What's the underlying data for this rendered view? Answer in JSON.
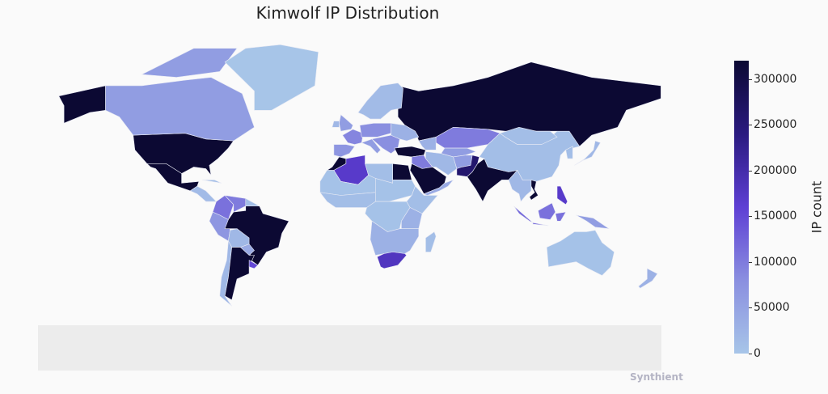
{
  "chart_data": {
    "type": "choropleth",
    "title": "Kimwolf IP Distribution",
    "colorbar": {
      "label": "IP count",
      "range": [
        0,
        320000
      ],
      "ticks": [
        "0",
        "50000",
        "100000",
        "150000",
        "200000",
        "250000",
        "300000"
      ],
      "colors": [
        "#a7c5e8",
        "#8a8fe0",
        "#5e3fd4",
        "#2a1a80",
        "#0c0933"
      ]
    },
    "regions": [
      {
        "name": "United States",
        "value": 320000
      },
      {
        "name": "Alaska",
        "value": 320000
      },
      {
        "name": "Canada",
        "value": 60000
      },
      {
        "name": "Canadian Arctic",
        "value": 60000
      },
      {
        "name": "Greenland",
        "value": 0
      },
      {
        "name": "Mexico",
        "value": 320000
      },
      {
        "name": "Central America",
        "value": 15000
      },
      {
        "name": "Cuba",
        "value": 10000
      },
      {
        "name": "Colombia",
        "value": 110000
      },
      {
        "name": "Venezuela",
        "value": 100000
      },
      {
        "name": "Guianas",
        "value": 10000
      },
      {
        "name": "Peru/Ecuador",
        "value": 70000
      },
      {
        "name": "Brazil",
        "value": 320000
      },
      {
        "name": "Bolivia",
        "value": 20000
      },
      {
        "name": "Paraguay",
        "value": 40000
      },
      {
        "name": "Chile",
        "value": 20000
      },
      {
        "name": "Argentina",
        "value": 320000
      },
      {
        "name": "Uruguay",
        "value": 150000
      },
      {
        "name": "Russia",
        "value": 320000
      },
      {
        "name": "Scandinavia",
        "value": 15000
      },
      {
        "name": "United Kingdom",
        "value": 60000
      },
      {
        "name": "Ireland",
        "value": 20000
      },
      {
        "name": "France",
        "value": 90000
      },
      {
        "name": "Iberia",
        "value": 70000
      },
      {
        "name": "Central Europe",
        "value": 80000
      },
      {
        "name": "Italy",
        "value": 60000
      },
      {
        "name": "Balkans",
        "value": 80000
      },
      {
        "name": "Ukraine/Belarus",
        "value": 30000
      },
      {
        "name": "Turkey",
        "value": 320000
      },
      {
        "name": "Caucasus",
        "value": 30000
      },
      {
        "name": "Kazakhstan",
        "value": 100000
      },
      {
        "name": "Central Asia",
        "value": 60000
      },
      {
        "name": "Iran",
        "value": 20000
      },
      {
        "name": "Iraq/Syria",
        "value": 100000
      },
      {
        "name": "Saudi Arabia",
        "value": 320000
      },
      {
        "name": "Yemen/Oman",
        "value": 40000
      },
      {
        "name": "Afghanistan",
        "value": 60000
      },
      {
        "name": "Pakistan",
        "value": 260000
      },
      {
        "name": "India",
        "value": 320000
      },
      {
        "name": "China",
        "value": 10000
      },
      {
        "name": "Mongolia",
        "value": 10000
      },
      {
        "name": "Mainland SE Asia",
        "value": 20000
      },
      {
        "name": "Vietnam",
        "value": 320000
      },
      {
        "name": "Korea",
        "value": 10000
      },
      {
        "name": "Japan",
        "value": 20000
      },
      {
        "name": "Philippines",
        "value": 170000
      },
      {
        "name": "Sumatra",
        "value": 120000
      },
      {
        "name": "Borneo",
        "value": 110000
      },
      {
        "name": "Java",
        "value": 120000
      },
      {
        "name": "Sulawesi",
        "value": 110000
      },
      {
        "name": "New Guinea",
        "value": 60000
      },
      {
        "name": "Australia",
        "value": 5000
      },
      {
        "name": "New Zealand",
        "value": 30000
      },
      {
        "name": "Morocco",
        "value": 320000
      },
      {
        "name": "Algeria",
        "value": 170000
      },
      {
        "name": "Libya",
        "value": 10000
      },
      {
        "name": "Egypt",
        "value": 320000
      },
      {
        "name": "Sahel",
        "value": 5000
      },
      {
        "name": "West Africa",
        "value": 10000
      },
      {
        "name": "Chad/Sudan",
        "value": 5000
      },
      {
        "name": "Horn of Africa",
        "value": 10000
      },
      {
        "name": "Central Africa",
        "value": 5000
      },
      {
        "name": "East Africa",
        "value": 30000
      },
      {
        "name": "Southern Africa",
        "value": 30000
      },
      {
        "name": "South Africa",
        "value": 180000
      },
      {
        "name": "Madagascar",
        "value": 10000
      }
    ]
  },
  "watermark": "Synthient"
}
